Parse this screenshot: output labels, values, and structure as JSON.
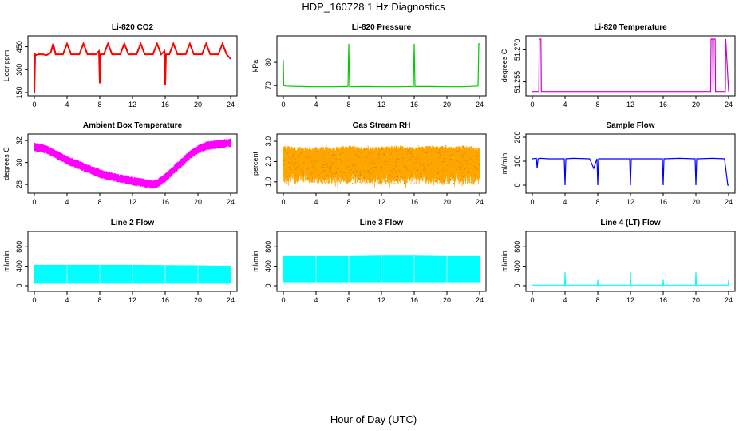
{
  "title": "HDP_160728  1 Hz Diagnostics",
  "xlabel": "Hour of Day (UTC)",
  "chart_data": [
    {
      "type": "line",
      "title": "Li-820 CO2",
      "ylabel": "Licor ppm",
      "color": "#ff0000",
      "xlim": [
        0,
        24
      ],
      "ylim": [
        150,
        500
      ],
      "yticks": [
        "150",
        "300",
        "450"
      ],
      "yticks_values": [
        150,
        300,
        450
      ],
      "xticks": [
        "0",
        "4",
        "8",
        "12",
        "16",
        "20",
        "24"
      ],
      "x": [
        0,
        0.1,
        0.2,
        0.5,
        1,
        1.5,
        2,
        2.3,
        2.6,
        3,
        3.5,
        4,
        4.5,
        5,
        5.5,
        6,
        6.5,
        7,
        7.5,
        7.9,
        8,
        8.1,
        8.5,
        9,
        9.5,
        10,
        10.5,
        11,
        11.5,
        12,
        12.5,
        13,
        13.5,
        14,
        14.5,
        15,
        15.5,
        15.9,
        16,
        16.1,
        16.5,
        17,
        17.5,
        18,
        18.5,
        19,
        19.5,
        20,
        20.5,
        21,
        21.5,
        22,
        22.5,
        23,
        23.5,
        24
      ],
      "y": [
        150,
        400,
        395,
        400,
        400,
        395,
        410,
        470,
        400,
        400,
        400,
        470,
        400,
        400,
        400,
        470,
        400,
        400,
        400,
        420,
        210,
        400,
        400,
        470,
        400,
        400,
        400,
        470,
        400,
        400,
        400,
        470,
        400,
        400,
        400,
        470,
        400,
        420,
        200,
        400,
        400,
        470,
        400,
        400,
        400,
        470,
        400,
        400,
        400,
        470,
        400,
        400,
        400,
        470,
        400,
        370
      ]
    },
    {
      "type": "line",
      "title": "Li-820 Pressure",
      "ylabel": "kPa",
      "color": "#00cc00",
      "xlim": [
        0,
        24
      ],
      "ylim": [
        67,
        90
      ],
      "yticks": [
        "70",
        "80"
      ],
      "yticks_values": [
        70,
        80
      ],
      "xticks": [
        "0",
        "4",
        "8",
        "12",
        "16",
        "20",
        "24"
      ],
      "x": [
        0,
        0.05,
        0.3,
        2,
        4,
        6,
        7.9,
        8,
        8.1,
        10,
        12,
        14,
        15.9,
        16,
        16.1,
        18,
        20,
        22,
        23.8,
        23.9,
        24
      ],
      "y": [
        81,
        70,
        69.8,
        69.6,
        69.5,
        69.5,
        69.6,
        88,
        69.5,
        69.6,
        69.5,
        69.5,
        69.6,
        88,
        69.6,
        69.6,
        69.5,
        69.5,
        69.8,
        88,
        88
      ]
    },
    {
      "type": "line",
      "title": "Li-820 Temperature",
      "ylabel": "degrees C",
      "color": "#cc00cc",
      "xlim": [
        0,
        24
      ],
      "ylim": [
        51.25,
        51.275
      ],
      "yticks": [
        "51.255",
        "51.270"
      ],
      "yticks_values": [
        51.255,
        51.27
      ],
      "xticks": [
        "0",
        "4",
        "8",
        "12",
        "16",
        "20",
        "24"
      ],
      "x": [
        0,
        0.8,
        0.85,
        1.05,
        1.1,
        12,
        21.8,
        21.85,
        22.05,
        22.1,
        22.15,
        22.35,
        22.4,
        23.6,
        23.65,
        24
      ],
      "y": [
        51.2505,
        51.2505,
        51.275,
        51.275,
        51.2505,
        51.2505,
        51.2505,
        51.275,
        51.275,
        51.2505,
        51.275,
        51.275,
        51.2505,
        51.2505,
        51.275,
        51.2505
      ]
    },
    {
      "type": "line",
      "title": "Ambient Box Temperature",
      "ylabel": "degrees C",
      "color": "#ff00ff",
      "xlim": [
        0,
        24
      ],
      "ylim": [
        27.5,
        32.3
      ],
      "yticks": [
        "28",
        "30",
        "32"
      ],
      "yticks_values": [
        28,
        30,
        32
      ],
      "xticks": [
        "0",
        "4",
        "8",
        "12",
        "16",
        "20",
        "24"
      ],
      "x": [
        0,
        1,
        2,
        3,
        4,
        5,
        6,
        7,
        8,
        9,
        10,
        11,
        12,
        13,
        14,
        14.5,
        15,
        16,
        17,
        18,
        19,
        20,
        21,
        22,
        23,
        24
      ],
      "y": [
        31.4,
        31.3,
        31,
        30.6,
        30.2,
        29.9,
        29.6,
        29.3,
        29,
        28.8,
        28.6,
        28.5,
        28.3,
        28.2,
        28.05,
        28,
        28.1,
        28.6,
        29.3,
        30,
        30.7,
        31.2,
        31.5,
        31.6,
        31.7,
        31.8
      ]
    },
    {
      "type": "line",
      "title": "Gas Stream RH",
      "ylabel": "percent",
      "color": "#ffa500",
      "xlim": [
        0,
        24
      ],
      "ylim": [
        0.6,
        3.2
      ],
      "yticks": [
        "1.0",
        "2.0",
        "3.0"
      ],
      "yticks_values": [
        1,
        2,
        3
      ],
      "xticks": [
        "0",
        "4",
        "8",
        "12",
        "16",
        "20",
        "24"
      ],
      "x": [
        0,
        2,
        4,
        6,
        8,
        10,
        12,
        14,
        16,
        18,
        20,
        22,
        24
      ],
      "y": [
        2.8,
        2.7,
        2.75,
        2.7,
        2.8,
        2.7,
        2.75,
        2.8,
        2.7,
        2.8,
        2.75,
        2.8,
        2.7
      ]
    },
    {
      "type": "line",
      "title": "Sample Flow",
      "ylabel": "ml/min",
      "color": "#0000ff",
      "xlim": [
        0,
        24
      ],
      "ylim": [
        -20,
        200
      ],
      "yticks": [
        "0",
        "100",
        "200"
      ],
      "yticks_values": [
        0,
        100,
        200
      ],
      "xticks": [
        "0",
        "4",
        "8",
        "12",
        "16",
        "20",
        "24"
      ],
      "x": [
        0,
        0.5,
        0.6,
        0.7,
        1,
        2,
        3.9,
        4,
        4.1,
        5,
        7,
        7.5,
        7.9,
        8,
        8.1,
        9,
        11.9,
        12,
        12.1,
        14,
        15.9,
        16,
        16.1,
        18,
        19.9,
        20,
        20.1,
        22,
        23.5,
        23.9,
        24
      ],
      "y": [
        110,
        112,
        70,
        110,
        112,
        110,
        110,
        0,
        110,
        112,
        110,
        70,
        110,
        0,
        110,
        110,
        110,
        0,
        110,
        110,
        110,
        0,
        110,
        112,
        110,
        0,
        110,
        112,
        110,
        0,
        0
      ]
    },
    {
      "type": "area",
      "title": "Line 2 Flow",
      "ylabel": "ml/min",
      "color": "#00ffff",
      "xlim": [
        0,
        24
      ],
      "ylim": [
        -50,
        1050
      ],
      "yticks": [
        "0",
        "400",
        "800"
      ],
      "yticks_values": [
        0,
        400,
        800
      ],
      "xticks": [
        "0",
        "4",
        "8",
        "12",
        "16",
        "20",
        "24"
      ],
      "x": [
        0,
        4,
        8,
        12,
        16,
        20,
        24
      ],
      "y_high": [
        420,
        420,
        420,
        420,
        415,
        410,
        400
      ],
      "y_low": [
        50,
        50,
        50,
        50,
        50,
        50,
        50
      ]
    },
    {
      "type": "area",
      "title": "Line 3 Flow",
      "ylabel": "ml/min",
      "color": "#00ffff",
      "xlim": [
        0,
        24
      ],
      "ylim": [
        -50,
        1050
      ],
      "yticks": [
        "0",
        "400",
        "800"
      ],
      "yticks_values": [
        0,
        400,
        800
      ],
      "xticks": [
        "0",
        "4",
        "8",
        "12",
        "16",
        "20",
        "24"
      ],
      "x": [
        0,
        4,
        8,
        12,
        16,
        20,
        24
      ],
      "y_high": [
        600,
        600,
        600,
        610,
        610,
        600,
        600
      ],
      "y_low": [
        80,
        80,
        80,
        80,
        80,
        80,
        80
      ]
    },
    {
      "type": "line",
      "title": "Line 4 (LT) Flow",
      "ylabel": "ml/min",
      "color": "#00ffff",
      "xlim": [
        0,
        24
      ],
      "ylim": [
        -50,
        1050
      ],
      "yticks": [
        "0",
        "400",
        "800"
      ],
      "yticks_values": [
        0,
        400,
        800
      ],
      "xticks": [
        "0",
        "4",
        "8",
        "12",
        "16",
        "20",
        "24"
      ],
      "x": [
        0,
        3.95,
        4,
        4.05,
        7.95,
        8,
        8.05,
        11.95,
        12,
        12.05,
        15.95,
        16,
        16.05,
        19.95,
        20,
        20.05,
        23.95,
        24
      ],
      "y": [
        10,
        10,
        280,
        10,
        10,
        120,
        10,
        10,
        280,
        10,
        10,
        120,
        10,
        10,
        280,
        10,
        10,
        120
      ]
    }
  ]
}
